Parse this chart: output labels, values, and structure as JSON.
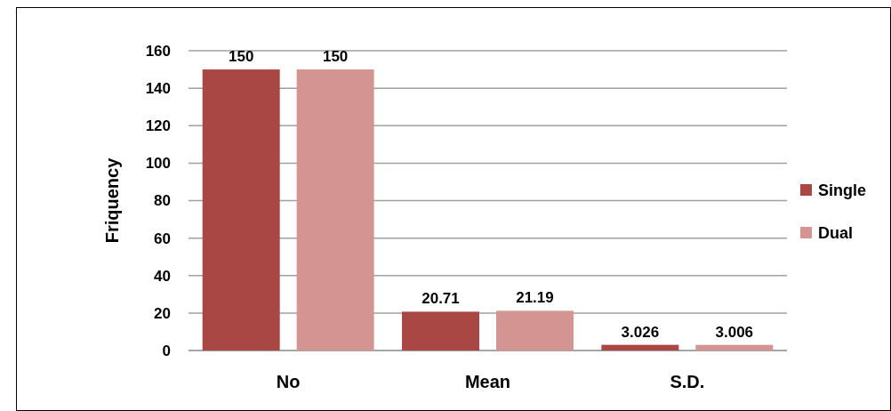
{
  "chart_data": {
    "type": "bar",
    "ylabel": "Friquency",
    "categories": [
      "No",
      "Mean",
      "S.D."
    ],
    "series": [
      {
        "name": "Single",
        "color": "#a94744",
        "values": [
          150,
          20.71,
          3.026
        ]
      },
      {
        "name": "Dual",
        "color": "#d49592",
        "values": [
          150,
          21.19,
          3.006
        ]
      }
    ],
    "ylim": [
      0,
      160
    ],
    "yticks": [
      0,
      20,
      40,
      60,
      80,
      100,
      120,
      140,
      160
    ],
    "grid": "y",
    "legend": "right",
    "data_labels": true
  }
}
